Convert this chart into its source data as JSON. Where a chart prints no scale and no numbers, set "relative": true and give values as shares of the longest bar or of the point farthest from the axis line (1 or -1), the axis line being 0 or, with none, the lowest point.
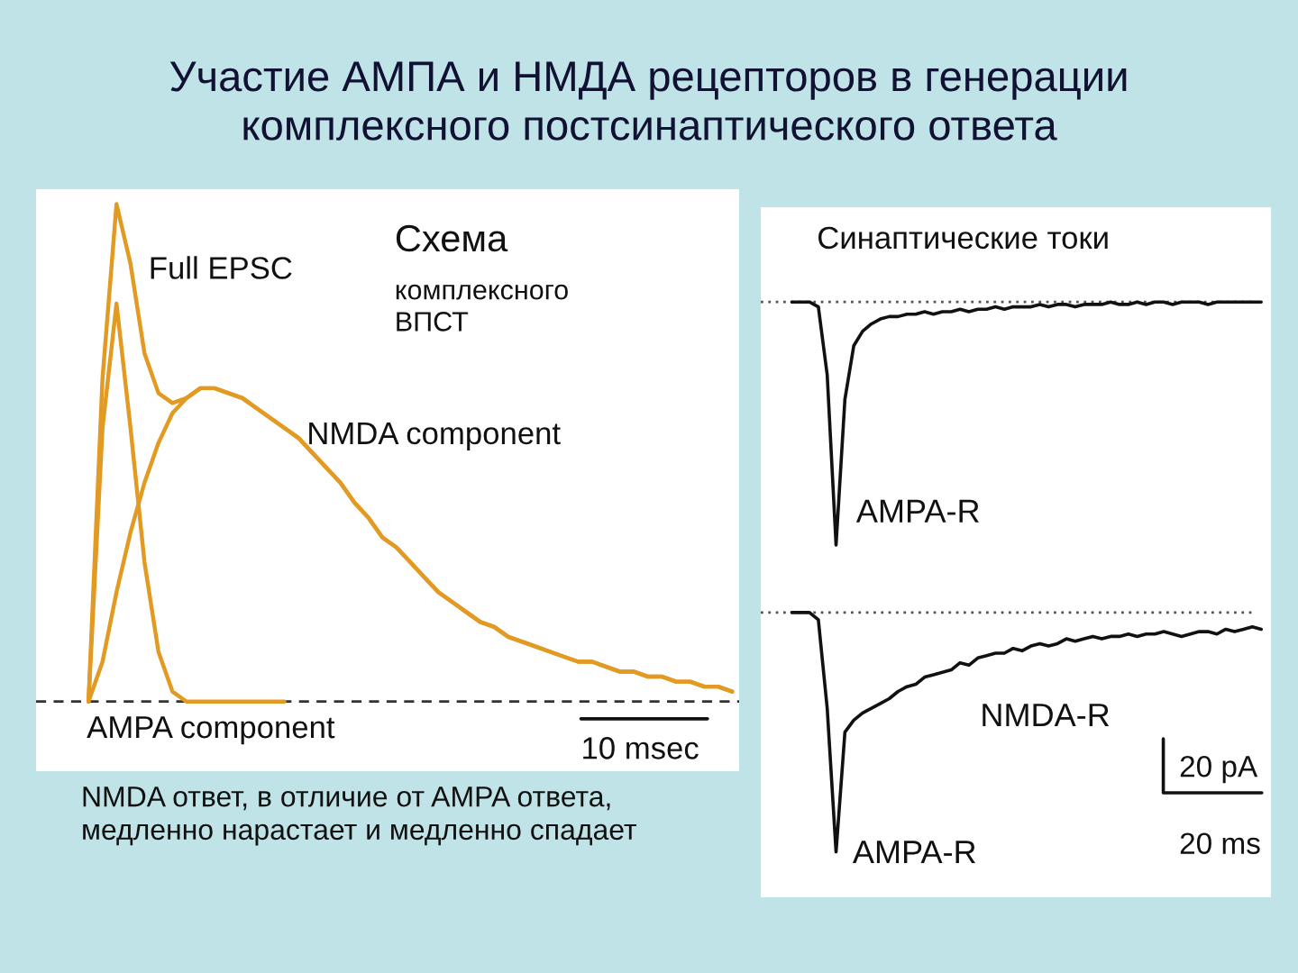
{
  "chart_data": [
    {
      "type": "line",
      "relative": true,
      "title": "Участие АМПА и НМДА рецепторов в генерации\nкомплексного постсинаптического ответа",
      "categories": [
        null,
        null,
        null,
        null,
        null,
        null,
        null,
        null,
        null,
        null,
        null,
        null,
        null,
        null,
        null,
        null,
        null,
        null,
        null,
        null,
        null,
        null,
        null,
        null,
        null,
        null,
        null,
        null,
        null,
        null,
        null,
        null,
        null,
        null,
        null,
        null,
        null,
        null,
        null,
        null,
        null,
        null,
        null,
        null,
        null,
        null,
        null,
        null,
        null,
        null
      ],
      "series": [
        {
          "name": "Full EPSC",
          "color": "#e39a22",
          "values": [
            null,
            null,
            null,
            0,
            0.65,
            1.0,
            0.88,
            0.7,
            0.62,
            0.6,
            0.61,
            0.63,
            0.63,
            0.62,
            0.61,
            0.59,
            0.57,
            0.55,
            0.53,
            0.5,
            0.47,
            0.44,
            0.4,
            0.37,
            0.33,
            0.31,
            0.28,
            0.25,
            0.22,
            0.2,
            0.18,
            0.16,
            0.15,
            0.13,
            0.12,
            0.11,
            0.1,
            0.09,
            0.08,
            0.08,
            0.07,
            0.06,
            0.06,
            0.05,
            0.05,
            0.04,
            0.04,
            0.03,
            0.03,
            0.02
          ]
        },
        {
          "name": "NMDA component",
          "color": "#e39a22",
          "values": [
            null,
            null,
            null,
            0,
            0.08,
            0.22,
            0.34,
            0.44,
            0.52,
            0.58,
            0.61,
            0.63,
            0.63,
            0.62,
            0.61,
            0.59,
            0.57,
            0.55,
            0.53,
            0.5,
            0.47,
            0.44,
            0.4,
            0.37,
            0.33,
            0.31,
            0.28,
            0.25,
            0.22,
            0.2,
            0.18,
            0.16,
            0.15,
            0.13,
            0.12,
            0.11,
            0.1,
            0.09,
            0.08,
            0.08,
            0.07,
            0.06,
            0.06,
            0.05,
            0.05,
            0.04,
            0.04,
            0.03,
            0.03,
            0.02
          ]
        },
        {
          "name": "AMPA component",
          "color": "#e39a22",
          "values": [
            null,
            null,
            null,
            0,
            0.55,
            0.8,
            0.55,
            0.28,
            0.1,
            0.02,
            0,
            0,
            0,
            0,
            0,
            0,
            0,
            0,
            null,
            null,
            null,
            null,
            null,
            null,
            null,
            null,
            null,
            null,
            null,
            null,
            null,
            null,
            null,
            null,
            null,
            null,
            null,
            null,
            null,
            null,
            null,
            null,
            null,
            null,
            null,
            null,
            null,
            null,
            null,
            null
          ]
        }
      ],
      "ref_lines": [
        {
          "axis": "y",
          "value": 0,
          "color": "#333333",
          "line_style": "dashed"
        }
      ],
      "annotations": [
        "Схема",
        "комплексного\nВПСТ",
        "10 msec",
        "NMDA ответ, в отличие от AMPA ответа,\nмедленно нарастает и медленно спадает"
      ],
      "legend": false
    },
    {
      "type": "line",
      "relative": true,
      "title": "Синаптические токи",
      "categories": [
        null,
        null,
        null,
        null,
        null,
        null,
        null,
        null,
        null,
        null,
        null,
        null,
        null,
        null,
        null,
        null,
        null,
        null,
        null,
        null,
        null,
        null,
        null,
        null,
        null,
        null,
        null,
        null,
        null,
        null,
        null,
        null,
        null,
        null,
        null,
        null,
        null,
        null,
        null,
        null,
        null,
        null,
        null,
        null,
        null,
        null,
        null,
        null,
        null,
        null,
        null,
        null,
        null,
        null
      ],
      "series": [
        {
          "name": "AMPA-R",
          "color": "#111111",
          "values": [
            0,
            0,
            0,
            -0.02,
            -0.3,
            -1.0,
            -0.4,
            -0.18,
            -0.12,
            -0.09,
            -0.07,
            -0.06,
            -0.06,
            -0.05,
            -0.05,
            -0.04,
            -0.05,
            -0.04,
            -0.04,
            -0.03,
            -0.04,
            -0.03,
            -0.03,
            -0.02,
            -0.03,
            -0.02,
            -0.02,
            -0.02,
            -0.01,
            -0.02,
            -0.01,
            -0.01,
            -0.02,
            -0.01,
            -0.01,
            -0.01,
            0,
            -0.01,
            -0.01,
            0,
            -0.01,
            0,
            0,
            -0.01,
            0,
            0,
            0,
            -0.01,
            0,
            0,
            0,
            0,
            0,
            0
          ]
        }
      ],
      "ref_lines": [
        {
          "axis": "y",
          "value": 0,
          "color": "#555555",
          "line_style": "dotted"
        }
      ],
      "legend": false
    },
    {
      "type": "line",
      "relative": true,
      "categories": [
        null,
        null,
        null,
        null,
        null,
        null,
        null,
        null,
        null,
        null,
        null,
        null,
        null,
        null,
        null,
        null,
        null,
        null,
        null,
        null,
        null,
        null,
        null,
        null,
        null,
        null,
        null,
        null,
        null,
        null,
        null,
        null,
        null,
        null,
        null,
        null,
        null,
        null,
        null,
        null,
        null,
        null,
        null,
        null,
        null,
        null,
        null,
        null,
        null,
        null,
        null,
        null,
        null,
        null
      ],
      "series": [
        {
          "color": "#111111",
          "values": [
            0,
            0,
            0,
            -0.03,
            -0.4,
            -1.0,
            -0.5,
            -0.45,
            -0.42,
            -0.4,
            -0.38,
            -0.36,
            -0.33,
            -0.31,
            -0.3,
            -0.27,
            -0.26,
            -0.25,
            -0.24,
            -0.21,
            -0.22,
            -0.19,
            -0.18,
            -0.17,
            -0.17,
            -0.15,
            -0.16,
            -0.14,
            -0.13,
            -0.14,
            -0.13,
            -0.11,
            -0.12,
            -0.11,
            -0.1,
            -0.11,
            -0.1,
            -0.1,
            -0.09,
            -0.1,
            -0.09,
            -0.09,
            -0.08,
            -0.09,
            -0.1,
            -0.09,
            -0.08,
            -0.08,
            -0.09,
            -0.07,
            -0.08,
            -0.07,
            -0.06,
            -0.07
          ]
        }
      ],
      "ref_lines": [
        {
          "axis": "y",
          "value": 0,
          "color": "#555555",
          "line_style": "dotted"
        }
      ],
      "annotations": [
        "NMDA-R",
        "AMPA-R",
        "20 pA",
        "20 ms"
      ],
      "legend": false
    }
  ]
}
